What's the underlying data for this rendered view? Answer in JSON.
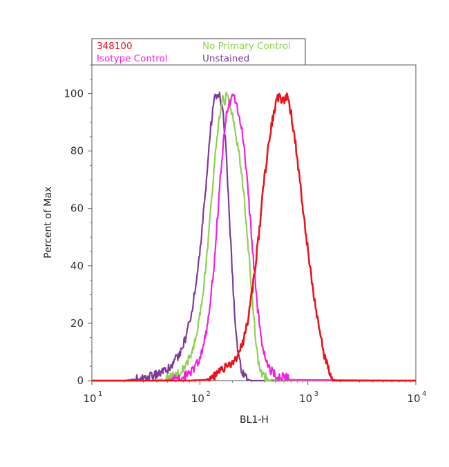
{
  "chart_data": {
    "type": "line",
    "title": "",
    "xlabel": "BL1-H",
    "ylabel": "Percent of Max",
    "x_scale": "log",
    "xlim": [
      10,
      10000
    ],
    "ylim": [
      0,
      110
    ],
    "x_ticks": [
      {
        "value": 10,
        "base": "10",
        "exp": "1"
      },
      {
        "value": 100,
        "base": "10",
        "exp": "2"
      },
      {
        "value": 1000,
        "base": "10",
        "exp": "3"
      },
      {
        "value": 10000,
        "base": "10",
        "exp": "4"
      }
    ],
    "y_ticks": [
      0,
      20,
      40,
      60,
      80,
      100
    ],
    "grid": false,
    "legend_position": "top-left, above plot",
    "series": [
      {
        "name": "348100",
        "color": "#e8141c",
        "x": [
          10,
          80,
          115,
          135,
          150,
          170,
          195,
          220,
          245,
          275,
          310,
          350,
          390,
          430,
          470,
          510,
          545,
          570,
          600,
          630,
          660,
          700,
          760,
          830,
          920,
          1030,
          1150,
          1300,
          1450,
          1650,
          1780,
          1900,
          10000
        ],
        "y": [
          0,
          0,
          0.3,
          1.5,
          3,
          4.5,
          6,
          8,
          12,
          20,
          33,
          50,
          68,
          82,
          91,
          97,
          100,
          98,
          97,
          99,
          98,
          93,
          84,
          72,
          57,
          42,
          28,
          16,
          7,
          2,
          0,
          0,
          0
        ]
      },
      {
        "name": "No Primary Control",
        "color": "#90d050",
        "x": [
          10,
          35,
          45,
          55,
          65,
          75,
          85,
          95,
          105,
          115,
          125,
          135,
          145,
          155,
          162,
          170,
          180,
          190,
          200,
          210,
          225,
          240,
          255,
          270,
          290,
          310,
          330,
          350,
          380,
          420,
          480,
          600,
          800,
          10000
        ],
        "y": [
          0,
          0,
          0.5,
          1.5,
          3,
          6,
          10,
          17,
          28,
          42,
          58,
          73,
          86,
          94,
          99,
          97,
          100,
          95,
          93,
          88,
          82,
          74,
          65,
          54,
          40,
          26,
          14,
          6,
          2,
          0.8,
          0.3,
          0.2,
          0,
          0
        ]
      },
      {
        "name": "Isotype Control",
        "color": "#f020e0",
        "x": [
          10,
          45,
          55,
          65,
          75,
          85,
          95,
          105,
          115,
          125,
          135,
          145,
          155,
          165,
          175,
          185,
          195,
          205,
          215,
          230,
          250,
          270,
          290,
          315,
          340,
          370,
          400,
          440,
          500,
          560,
          620,
          680,
          10000
        ],
        "y": [
          0,
          0,
          0.5,
          1,
          2,
          3.5,
          6,
          10,
          17,
          27,
          40,
          56,
          71,
          83,
          92,
          96,
          98,
          100,
          97,
          93,
          85,
          73,
          58,
          41,
          26,
          15,
          8,
          4,
          2,
          1,
          1.5,
          0.3,
          0
        ]
      },
      {
        "name": "Unstained",
        "color": "#7d3a96",
        "x": [
          10,
          20,
          28,
          35,
          42,
          50,
          58,
          66,
          74,
          82,
          90,
          98,
          106,
          114,
          120,
          126,
          132,
          138,
          145,
          152,
          160,
          168,
          176,
          185,
          195,
          205,
          215,
          225,
          240,
          255,
          275,
          300,
          10000
        ],
        "y": [
          0,
          0,
          0.8,
          1.5,
          2.5,
          4,
          6.5,
          10,
          15,
          22,
          31,
          42,
          55,
          68,
          79,
          88,
          95,
          100,
          98,
          99,
          96,
          89,
          78,
          62,
          45,
          30,
          18,
          10,
          4.5,
          1.8,
          0.5,
          0,
          0
        ]
      }
    ]
  }
}
